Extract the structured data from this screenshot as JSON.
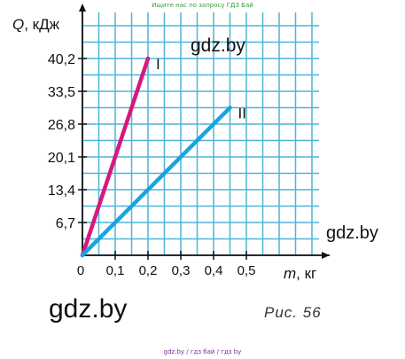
{
  "watermarks": {
    "top": "Ищите нас по запросу ГДЗ Бай",
    "chart_1": "gdz.by",
    "chart_2": "gdz.by",
    "big": "gdz.by",
    "bottom": "gdz.by  /  гдз бай  /  гдз by"
  },
  "caption": "Рис.  56",
  "colors": {
    "grid": "#4fb3d9",
    "axis": "#111111",
    "line_I": "#d6197e",
    "line_II": "#1ba3dd"
  },
  "chart_data": {
    "type": "line",
    "ylabel_italic": "Q",
    "ylabel_rest": ", кДж",
    "xlabel_italic": "m",
    "xlabel_rest": ", кг",
    "origin_label": "0",
    "x_ticks": [
      0.1,
      0.2,
      0.3,
      0.4,
      0.5
    ],
    "x_tick_labels": [
      "0,1",
      "0,2",
      "0,3",
      "0,4",
      "0,5"
    ],
    "y_ticks": [
      6.7,
      13.4,
      20.1,
      26.8,
      33.5,
      40.2
    ],
    "y_tick_labels": [
      "6,7",
      "13,4",
      "20,1",
      "26,8",
      "33,5",
      "40,2"
    ],
    "xlim": [
      0,
      0.75
    ],
    "ylim": [
      0,
      50
    ],
    "grid": true,
    "series": [
      {
        "name": "I",
        "color": "#d6197e",
        "x": [
          0,
          0.2
        ],
        "y": [
          0,
          40.2
        ]
      },
      {
        "name": "II",
        "color": "#1ba3dd",
        "x": [
          0,
          0.45
        ],
        "y": [
          0,
          30.15
        ]
      }
    ]
  }
}
